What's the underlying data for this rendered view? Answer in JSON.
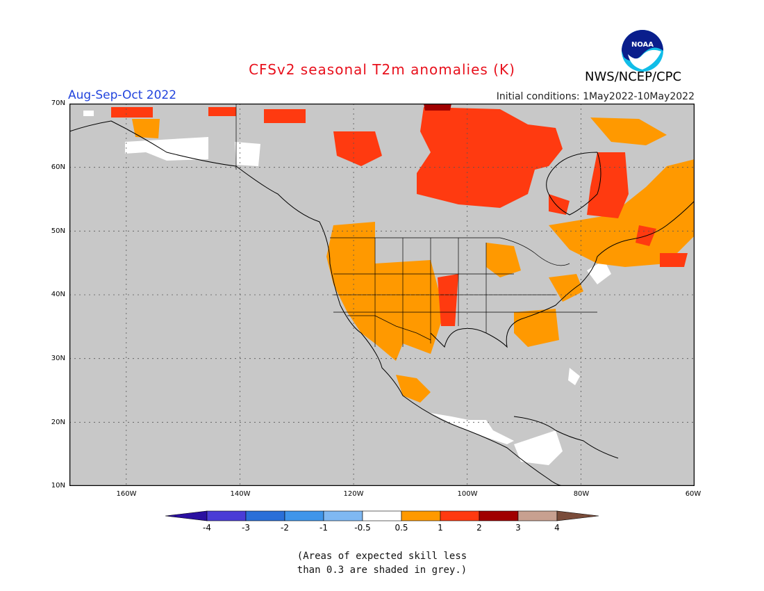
{
  "header": {
    "title": "CFSv2 seasonal T2m anomalies (K)",
    "season": "Aug-Sep-Oct 2022",
    "initial_conditions": "Initial conditions: 1May2022-10May2022",
    "agency": "NWS/NCEP/CPC",
    "logo_text": "NOAA"
  },
  "map": {
    "region": "North America",
    "lat_ticks": [
      "70N",
      "60N",
      "50N",
      "40N",
      "30N",
      "20N",
      "10N"
    ],
    "lon_ticks": [
      "160W",
      "140W",
      "120W",
      "100W",
      "80W",
      "60W"
    ],
    "grid": true,
    "land_default_color": "#c8c8c8",
    "ocean_color": "#c8c8c8"
  },
  "colorbar": {
    "labels": [
      "-4",
      "-3",
      "-2",
      "-1",
      "-0.5",
      "0.5",
      "1",
      "2",
      "3",
      "4"
    ],
    "colors": [
      "#2a0fa0",
      "#4a3cd6",
      "#2a6fd8",
      "#3f95ea",
      "#7fb8f2",
      "#ffffff",
      "#ff9900",
      "#ff3a10",
      "#a00000",
      "#c8a090",
      "#7a4c3a"
    ]
  },
  "note": {
    "line1": "(Areas of expected skill less",
    "line2": "than 0.3 are shaded in grey.)"
  }
}
